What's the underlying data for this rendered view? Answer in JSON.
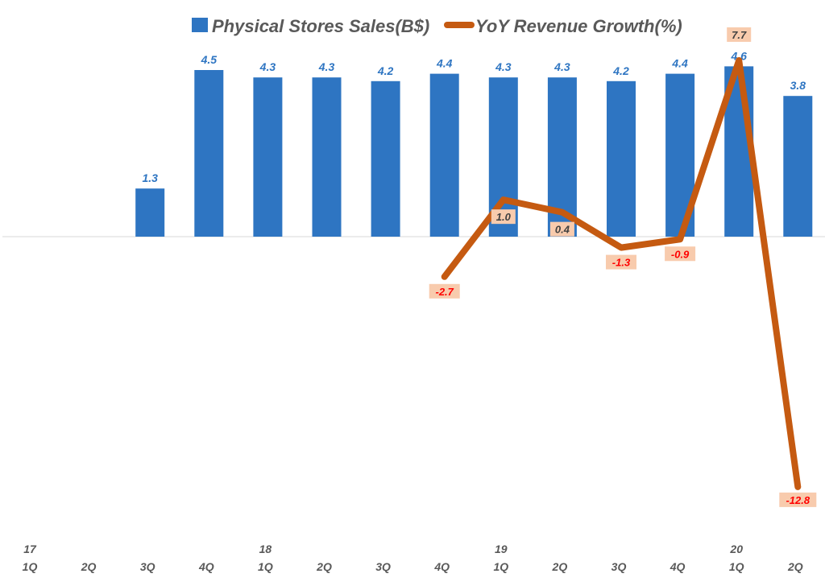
{
  "chart_data": {
    "type": "bar",
    "title": "",
    "xlabel": "",
    "ylabel": "",
    "legend_position": "top",
    "grid": false,
    "years": [
      "17",
      "",
      "",
      "",
      "18",
      "",
      "",
      "",
      "19",
      "",
      "",
      "",
      "20",
      ""
    ],
    "categories": [
      "1Q",
      "2Q",
      "3Q",
      "4Q",
      "1Q",
      "2Q",
      "3Q",
      "4Q",
      "1Q",
      "2Q",
      "3Q",
      "4Q",
      "1Q",
      "2Q"
    ],
    "series": [
      {
        "name": "Physical Stores Sales(B$)",
        "type": "bar",
        "axis": "primary",
        "color": "#2E75C2",
        "values": [
          null,
          null,
          1.3,
          4.5,
          4.3,
          4.3,
          4.2,
          4.4,
          4.3,
          4.3,
          4.2,
          4.4,
          4.6,
          3.8
        ],
        "labels": [
          "",
          "",
          "1.3",
          "4.5",
          "4.3",
          "4.3",
          "4.2",
          "4.4",
          "4.3",
          "4.3",
          "4.2",
          "4.4",
          "4.6",
          "3.8"
        ]
      },
      {
        "name": "YoY Revenue Growth(%)",
        "type": "line",
        "axis": "secondary",
        "color": "#C55A11",
        "values": [
          null,
          null,
          null,
          null,
          null,
          null,
          null,
          -2.7,
          1.0,
          0.4,
          -1.3,
          -0.9,
          7.7,
          -12.8
        ],
        "labels": [
          "",
          "",
          "",
          "",
          "",
          "",
          "",
          "-2.7",
          "1.0",
          "0.4",
          "-1.3",
          "-0.9",
          "7.7",
          "-12.8"
        ]
      }
    ],
    "label_box_color": "#F8CBAD",
    "negative_label_color": "#FF0000",
    "positive_label_color": "#404040"
  }
}
